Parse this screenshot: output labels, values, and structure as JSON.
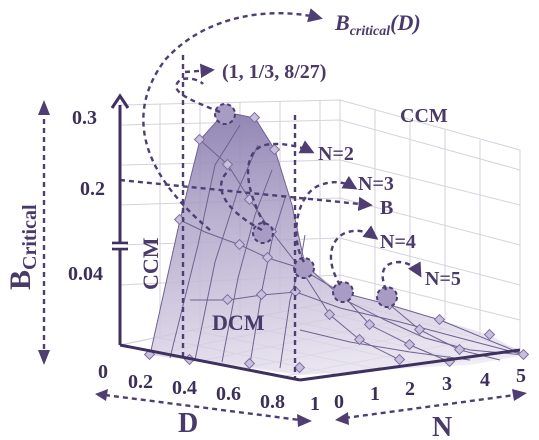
{
  "labels": {
    "b_critical_d": "B",
    "b_critical_d_sub": "critical",
    "b_critical_d_tail": "(D)",
    "point": "(1, 1/3, 8/27)",
    "ccm_top": "CCM",
    "ccm_left": "CCM",
    "dcm": "DCM",
    "b_line": "B",
    "n2": "N=2",
    "n3": "N=3",
    "n4": "N=4",
    "n5": "N=5",
    "y_axis_title": "B",
    "y_axis_title_sub": "Critical",
    "d_axis_title": "D",
    "n_axis_title": "N"
  },
  "y_ticks": [
    "0.3",
    "0.2",
    "0.04"
  ],
  "d_ticks": [
    "0",
    "0.2",
    "0.4",
    "0.6",
    "0.8",
    "1"
  ],
  "n_ticks": [
    "0",
    "1",
    "2",
    "3",
    "4",
    "5"
  ],
  "colors": {
    "surface_top": "#8c7fb0",
    "surface_bottom": "#e7e2ef",
    "ink": "#4a3a6a"
  }
}
